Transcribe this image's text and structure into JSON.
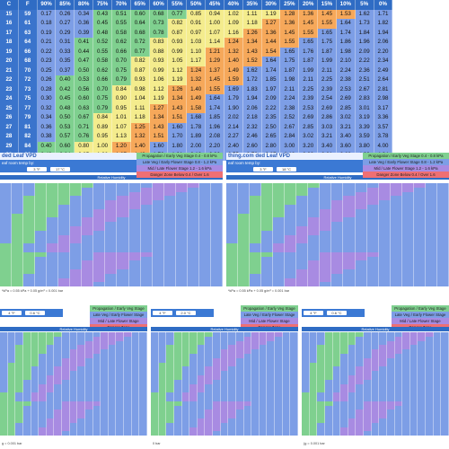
{
  "main_table": {
    "header": [
      "C",
      "F",
      "90%",
      "85%",
      "80%",
      "75%",
      "70%",
      "65%",
      "60%",
      "55%",
      "50%",
      "45%",
      "40%",
      "35%",
      "30%",
      "25%",
      "20%",
      "15%",
      "10%",
      "5%",
      "0%"
    ],
    "rows": [
      {
        "c": "15",
        "f": "59",
        "v": [
          "0.17",
          "0.26",
          "0.34",
          "0.43",
          "0.51",
          "0.60",
          "0.68",
          "0.77",
          "0.85",
          "0.94",
          "1.02",
          "1.11",
          "1.19",
          "1.28",
          "1.36",
          "1.45",
          "1.53",
          "1.62",
          "1.71"
        ]
      },
      {
        "c": "16",
        "f": "61",
        "v": [
          "0.18",
          "0.27",
          "0.36",
          "0.45",
          "0.55",
          "0.64",
          "0.73",
          "0.82",
          "0.91",
          "1.00",
          "1.09",
          "1.18",
          "1.27",
          "1.36",
          "1.45",
          "1.55",
          "1.64",
          "1.73",
          "1.82"
        ]
      },
      {
        "c": "17",
        "f": "63",
        "v": [
          "0.19",
          "0.29",
          "0.39",
          "0.48",
          "0.58",
          "0.68",
          "0.78",
          "0.87",
          "0.97",
          "1.07",
          "1.16",
          "1.26",
          "1.36",
          "1.45",
          "1.55",
          "1.65",
          "1.74",
          "1.84",
          "1.94"
        ]
      },
      {
        "c": "18",
        "f": "64",
        "v": [
          "0.21",
          "0.31",
          "0.41",
          "0.52",
          "0.62",
          "0.72",
          "0.83",
          "0.93",
          "1.03",
          "1.14",
          "1.24",
          "1.34",
          "1.44",
          "1.55",
          "1.65",
          "1.75",
          "1.86",
          "1.96",
          "2.06"
        ]
      },
      {
        "c": "19",
        "f": "66",
        "v": [
          "0.22",
          "0.33",
          "0.44",
          "0.55",
          "0.66",
          "0.77",
          "0.88",
          "0.99",
          "1.10",
          "1.21",
          "1.32",
          "1.43",
          "1.54",
          "1.65",
          "1.76",
          "1.87",
          "1.98",
          "2.09",
          "2.20"
        ]
      },
      {
        "c": "20",
        "f": "68",
        "v": [
          "0.23",
          "0.35",
          "0.47",
          "0.58",
          "0.70",
          "0.82",
          "0.93",
          "1.05",
          "1.17",
          "1.29",
          "1.40",
          "1.52",
          "1.64",
          "1.75",
          "1.87",
          "1.99",
          "2.10",
          "2.22",
          "2.34"
        ]
      },
      {
        "c": "21",
        "f": "70",
        "v": [
          "0.25",
          "0.37",
          "0.50",
          "0.62",
          "0.75",
          "0.87",
          "0.99",
          "1.12",
          "1.24",
          "1.37",
          "1.49",
          "1.62",
          "1.74",
          "1.87",
          "1.99",
          "2.11",
          "2.24",
          "2.36",
          "2.49"
        ]
      },
      {
        "c": "22",
        "f": "72",
        "v": [
          "0.26",
          "0.40",
          "0.53",
          "0.66",
          "0.79",
          "0.93",
          "1.06",
          "1.19",
          "1.32",
          "1.45",
          "1.59",
          "1.72",
          "1.85",
          "1.98",
          "2.11",
          "2.25",
          "2.38",
          "2.51",
          "2.64"
        ]
      },
      {
        "c": "23",
        "f": "73",
        "v": [
          "0.28",
          "0.42",
          "0.56",
          "0.70",
          "0.84",
          "0.98",
          "1.12",
          "1.26",
          "1.40",
          "1.55",
          "1.69",
          "1.83",
          "1.97",
          "2.11",
          "2.25",
          "2.39",
          "2.53",
          "2.67",
          "2.81"
        ]
      },
      {
        "c": "24",
        "f": "75",
        "v": [
          "0.30",
          "0.45",
          "0.60",
          "0.75",
          "0.90",
          "1.04",
          "1.19",
          "1.34",
          "1.49",
          "1.64",
          "1.79",
          "1.94",
          "2.09",
          "2.24",
          "2.39",
          "2.54",
          "2.69",
          "2.83",
          "2.98"
        ]
      },
      {
        "c": "25",
        "f": "77",
        "v": [
          "0.32",
          "0.48",
          "0.63",
          "0.79",
          "0.95",
          "1.11",
          "1.27",
          "1.43",
          "1.58",
          "1.74",
          "1.90",
          "2.06",
          "2.22",
          "2.38",
          "2.53",
          "2.69",
          "2.85",
          "3.01",
          "3.17"
        ]
      },
      {
        "c": "26",
        "f": "79",
        "v": [
          "0.34",
          "0.50",
          "0.67",
          "0.84",
          "1.01",
          "1.18",
          "1.34",
          "1.51",
          "1.68",
          "1.85",
          "2.02",
          "2.18",
          "2.35",
          "2.52",
          "2.69",
          "2.86",
          "3.02",
          "3.19",
          "3.36"
        ]
      },
      {
        "c": "27",
        "f": "81",
        "v": [
          "0.36",
          "0.53",
          "0.71",
          "0.89",
          "1.07",
          "1.25",
          "1.43",
          "1.60",
          "1.78",
          "1.96",
          "2.14",
          "2.32",
          "2.50",
          "2.67",
          "2.85",
          "3.03",
          "3.21",
          "3.39",
          "3.57"
        ]
      },
      {
        "c": "28",
        "f": "82",
        "v": [
          "0.38",
          "0.57",
          "0.76",
          "0.95",
          "1.13",
          "1.32",
          "1.51",
          "1.70",
          "1.89",
          "2.08",
          "2.27",
          "2.46",
          "2.65",
          "2.84",
          "3.02",
          "3.21",
          "3.40",
          "3.59",
          "3.78"
        ]
      },
      {
        "c": "29",
        "f": "84",
        "v": [
          "0.40",
          "0.60",
          "0.80",
          "1.00",
          "1.20",
          "1.40",
          "1.60",
          "1.80",
          "2.00",
          "2.20",
          "2.40",
          "2.60",
          "2.80",
          "3.00",
          "3.20",
          "3.40",
          "3.60",
          "3.80",
          "4.00"
        ]
      },
      {
        "c": "30",
        "f": "86",
        "v": [
          "0.42",
          "0.64",
          "0.85",
          "1.06",
          "1.27",
          "1.48",
          "1.70",
          "1.91",
          "2.12",
          "2.33",
          "2.55",
          "2.76",
          "2.97",
          "3.18",
          "3.39",
          "3.61",
          "3.82",
          "4.03",
          "4.24"
        ]
      }
    ]
  },
  "panels": {
    "top_left": {
      "title": "ded Leaf VPD",
      "bar_label": "eaf room temp by:",
      "input_f": "3 °F",
      "input_c": "17 °C",
      "rh_label": "Relative Humidity",
      "footer": "*kPa = 0.55 kPa + 0.05 g/m³ = 0.001 bar",
      "legend": [
        "Propagation / Early Veg Stage 0.4 - 0.8 kPa",
        "Late Veg / Early Flower Stage 0.8 - 1.2 kPa",
        "Mid / Late Flower Stage 1.2 - 1.6 kPa",
        "Danger Zone  Below 0.4 / Over 1.6"
      ]
    },
    "top_right": {
      "title": "ded Leaf VPD",
      "site": "thing.com",
      "bar_label": "eaf room temp by:",
      "input_f": "3 °F",
      "input_c": "18 °C",
      "rh_label": "Relative Humidity",
      "footer": "*kPa = 0.55 kPa + 0.05 g/m³ = 0.001 bar",
      "legend": [
        "Propagation / Early Veg Stage 0.4 - 0.8 kPa",
        "Late Veg / Early Flower Stage 0.8 - 1.2 kPa",
        "Mid / Late Flower Stage 1.2 - 1.6 kPa",
        "Danger Zone  Below 0.4 / Over 1.6"
      ]
    },
    "bottom_1": {
      "input_f": "4 °F",
      "input_c": "0.6 °C",
      "rh_label": "Relative Humidity",
      "footer": "g = 0.001 bar",
      "legend": [
        "Propagation / Early Veg Stage",
        "Late Veg / Early Flower Stage",
        "Mid / Late Flower Stage",
        "Danger Zone"
      ]
    },
    "bottom_2": {
      "input_f": "4 °F",
      "input_c": "2.0 °C",
      "rh_label": "Relative Humidity",
      "footer": "0 bar",
      "legend": [
        "Propagation / Early Veg Stage",
        "Late Veg / Early Flower Stage",
        "Mid / Late Flower Stage",
        "Danger Zone"
      ]
    },
    "bottom_3": {
      "input_f": "4 °F",
      "input_c": "0.6 °C",
      "rh_label": "Relative Humidity",
      "footer": "(g = 0.001 bar",
      "legend": [
        "Propagation / Early Veg Stage",
        "Late Veg / Early Flower Stage",
        "Mid / Late Flower Stage",
        "Danger Zone"
      ]
    }
  },
  "colors": {
    "header_blue": "#2f6cc4",
    "zone_blue": "#7d9ee6",
    "zone_green": "#7fd08f",
    "zone_yellow": "#f4ec8d",
    "zone_orange": "#f6a85a",
    "zone_red": "#ef6f73",
    "zone_purple": "#a88be2"
  }
}
